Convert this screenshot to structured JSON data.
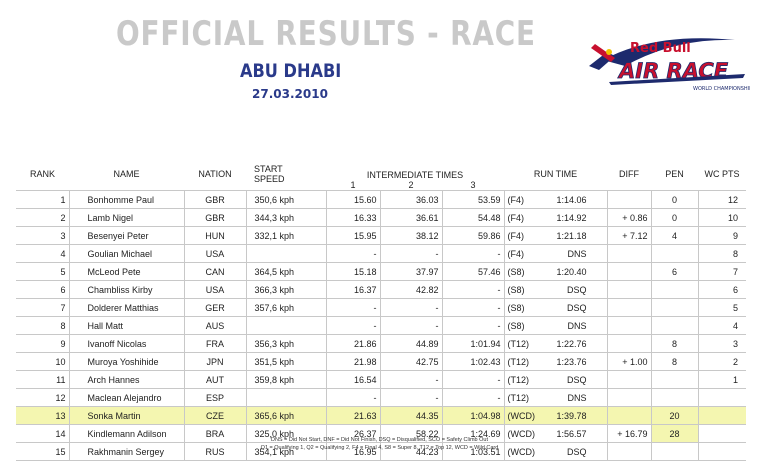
{
  "header": {
    "title": "OFFICIAL RESULTS - RACE",
    "city": "ABU DHABI",
    "date": "27.03.2010",
    "logo": {
      "brand": "Red Bull",
      "name": "AIR RACE",
      "sub": "WORLD CHAMPIONSHIP"
    }
  },
  "columns": {
    "rank": "RANK",
    "name": "NAME",
    "nation": "NATION",
    "start_speed": "START\nSPEED",
    "start_speed_1": "START",
    "start_speed_2": "SPEED",
    "intermediate": "INTERMEDIATE TIMES",
    "i1": "1",
    "i2": "2",
    "i3": "3",
    "run_time": "RUN TIME",
    "diff": "DIFF",
    "pen": "PEN",
    "wc_pts": "WC PTS"
  },
  "rows": [
    {
      "rank": "1",
      "name": "Bonhomme Paul",
      "nation": "GBR",
      "speed": "350,6 kph",
      "i1": "15.60",
      "i2": "36.03",
      "i3": "53.59",
      "stage": "(F4)",
      "run": "1:14.06",
      "diff": "",
      "pen": "0",
      "pts": "12"
    },
    {
      "rank": "2",
      "name": "Lamb Nigel",
      "nation": "GBR",
      "speed": "344,3 kph",
      "i1": "16.33",
      "i2": "36.61",
      "i3": "54.48",
      "stage": "(F4)",
      "run": "1:14.92",
      "diff": "+ 0.86",
      "pen": "0",
      "pts": "10"
    },
    {
      "rank": "3",
      "name": "Besenyei Peter",
      "nation": "HUN",
      "speed": "332,1 kph",
      "i1": "15.95",
      "i2": "38.12",
      "i3": "59.86",
      "stage": "(F4)",
      "run": "1:21.18",
      "diff": "+ 7.12",
      "pen": "4",
      "pts": "9"
    },
    {
      "rank": "4",
      "name": "Goulian Michael",
      "nation": "USA",
      "speed": "",
      "i1": "-",
      "i2": "-",
      "i3": "-",
      "stage": "(F4)",
      "run": "DNS",
      "diff": "",
      "pen": "",
      "pts": "8"
    },
    {
      "rank": "5",
      "name": "McLeod Pete",
      "nation": "CAN",
      "speed": "364,5 kph",
      "i1": "15.18",
      "i2": "37.97",
      "i3": "57.46",
      "stage": "(S8)",
      "run": "1:20.40",
      "diff": "",
      "pen": "6",
      "pts": "7"
    },
    {
      "rank": "6",
      "name": "Chambliss Kirby",
      "nation": "USA",
      "speed": "366,3 kph",
      "i1": "16.37",
      "i2": "42.82",
      "i3": "-",
      "stage": "(S8)",
      "run": "DSQ",
      "diff": "",
      "pen": "",
      "pts": "6"
    },
    {
      "rank": "7",
      "name": "Dolderer Matthias",
      "nation": "GER",
      "speed": "357,6 kph",
      "i1": "-",
      "i2": "-",
      "i3": "-",
      "stage": "(S8)",
      "run": "DSQ",
      "diff": "",
      "pen": "",
      "pts": "5"
    },
    {
      "rank": "8",
      "name": "Hall Matt",
      "nation": "AUS",
      "speed": "",
      "i1": "-",
      "i2": "-",
      "i3": "-",
      "stage": "(S8)",
      "run": "DNS",
      "diff": "",
      "pen": "",
      "pts": "4"
    },
    {
      "rank": "9",
      "name": "Ivanoff Nicolas",
      "nation": "FRA",
      "speed": "356,3 kph",
      "i1": "21.86",
      "i2": "44.89",
      "i3": "1:01.94",
      "stage": "(T12)",
      "run": "1:22.76",
      "diff": "",
      "pen": "8",
      "pts": "3"
    },
    {
      "rank": "10",
      "name": "Muroya Yoshihide",
      "nation": "JPN",
      "speed": "351,5 kph",
      "i1": "21.98",
      "i2": "42.75",
      "i3": "1:02.43",
      "stage": "(T12)",
      "run": "1:23.76",
      "diff": "+ 1.00",
      "pen": "8",
      "pts": "2"
    },
    {
      "rank": "11",
      "name": "Arch Hannes",
      "nation": "AUT",
      "speed": "359,8 kph",
      "i1": "16.54",
      "i2": "-",
      "i3": "-",
      "stage": "(T12)",
      "run": "DSQ",
      "diff": "",
      "pen": "",
      "pts": "1"
    },
    {
      "rank": "12",
      "name": "Maclean Alejandro",
      "nation": "ESP",
      "speed": "",
      "i1": "-",
      "i2": "-",
      "i3": "-",
      "stage": "(T12)",
      "run": "DNS",
      "diff": "",
      "pen": "",
      "pts": ""
    },
    {
      "rank": "13",
      "name": "Sonka Martin",
      "nation": "CZE",
      "speed": "365,6 kph",
      "i1": "21.63",
      "i2": "44.35",
      "i3": "1:04.98",
      "stage": "(WCD)",
      "run": "1:39.78",
      "diff": "",
      "pen": "20",
      "pts": ""
    },
    {
      "rank": "14",
      "name": "Kindlemann Adilson",
      "nation": "BRA",
      "speed": "325,0 kph",
      "i1": "26.37",
      "i2": "58.22",
      "i3": "1:24.69",
      "stage": "(WCD)",
      "run": "1:56.57",
      "diff": "+ 16.79",
      "pen": "28",
      "pts": ""
    },
    {
      "rank": "15",
      "name": "Rakhmanin Sergey",
      "nation": "RUS",
      "speed": "354,1 kph",
      "i1": "16.95",
      "i2": "44.23",
      "i3": "1:03.51",
      "stage": "(WCD)",
      "run": "DSQ",
      "diff": "",
      "pen": "",
      "pts": ""
    }
  ],
  "highlight_color": "#f4f6b0",
  "footer": {
    "line1": "DNS = Did Not Start, DNF = Did Not Finish, DSQ = Disqualified, SCO = Safety Climb Out",
    "line2": "Q1 = Qualifying 1, Q2 = Qualifying 2, F4 = Final 4, S8 = Super 8, T12 = Top 12, WCD = Wild Card"
  }
}
